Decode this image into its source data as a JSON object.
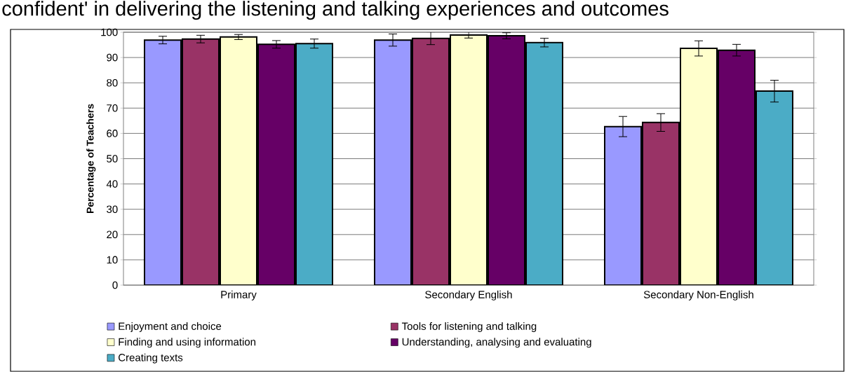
{
  "chart_data": {
    "type": "bar",
    "title": "confident' in delivering the listening and talking experiences and outcomes",
    "ylabel": "Percentage of Teachers",
    "categories": [
      "Primary",
      "Secondary English",
      "Secondary Non-English"
    ],
    "series": [
      {
        "name": "Enjoyment and choice",
        "color": "#9999ff",
        "values": [
          96.9,
          96.9,
          62.7
        ],
        "errors": [
          1.5,
          2.4,
          4.0
        ]
      },
      {
        "name": "Tools for listening and talking",
        "color": "#993366",
        "values": [
          97.3,
          97.6,
          64.3
        ],
        "errors": [
          1.5,
          2.5,
          3.5
        ]
      },
      {
        "name": "Finding and using information",
        "color": "#ffffcc",
        "values": [
          98.1,
          98.9,
          93.6
        ],
        "errors": [
          1.0,
          1.2,
          3.0
        ]
      },
      {
        "name": "Understanding, analysing and evaluating",
        "color": "#660066",
        "values": [
          95.2,
          98.6,
          92.9
        ],
        "errors": [
          1.5,
          1.2,
          2.3
        ]
      },
      {
        "name": "Creating texts",
        "color": "#4bacc6",
        "values": [
          95.5,
          95.9,
          76.7
        ],
        "errors": [
          1.8,
          1.7,
          4.3
        ]
      }
    ],
    "ylim": [
      0,
      100
    ],
    "yticks": [
      0,
      10,
      20,
      30,
      40,
      50,
      60,
      70,
      80,
      90,
      100
    ],
    "grid": "y",
    "legend": "bottom"
  }
}
